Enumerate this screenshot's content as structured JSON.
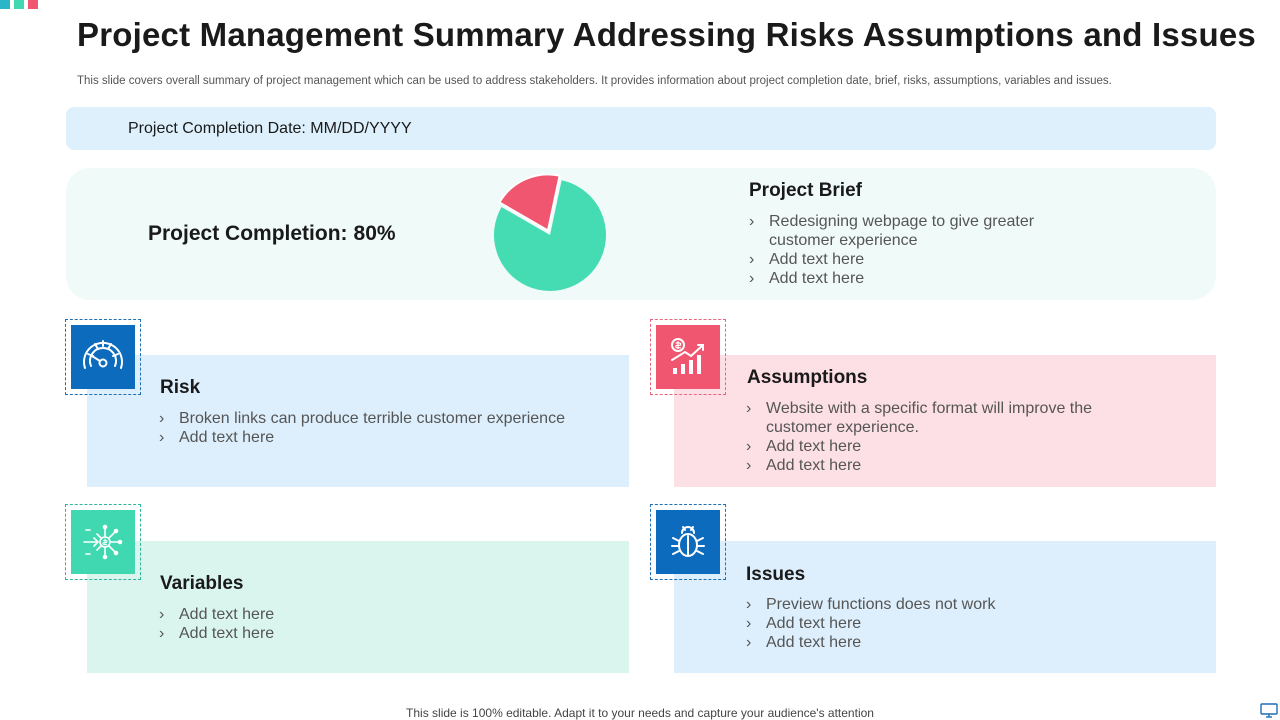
{
  "header": {
    "title": "Project Management Summary Addressing Risks Assumptions and Issues",
    "subtitle": "This slide covers overall summary of project management which can be used to address stakeholders. It provides information about project completion date, brief, risks, assumptions, variables and issues."
  },
  "completion_date": "Project Completion Date: MM/DD/YYYY",
  "completion": {
    "label": "Project Completion:",
    "value_text": "80%",
    "fraction": 0.8,
    "colors": {
      "done": "#45dcb4",
      "remaining": "#f0566f"
    }
  },
  "brief": {
    "title": "Project Brief",
    "items": [
      "Redesigning webpage to give greater customer experience",
      "Add text here",
      "Add text here"
    ]
  },
  "risk": {
    "title": "Risk",
    "icon": "gauge-icon",
    "items": [
      "Broken links can produce terrible customer experience",
      "Add text here"
    ]
  },
  "assumptions": {
    "title": "Assumptions",
    "icon": "growth-chart-icon",
    "items": [
      "Website with a specific format will improve the customer experience.",
      "Add text here",
      "Add text here"
    ]
  },
  "variables": {
    "title": "Variables",
    "icon": "network-dollar-icon",
    "items": [
      "Add text here",
      "Add text here"
    ]
  },
  "issues": {
    "title": "Issues",
    "icon": "bug-icon",
    "items": [
      "Preview functions does not work",
      "Add text here",
      "Add text here"
    ]
  },
  "footer": "This slide is 100% editable. Adapt it to your needs and capture your audience's attention"
}
